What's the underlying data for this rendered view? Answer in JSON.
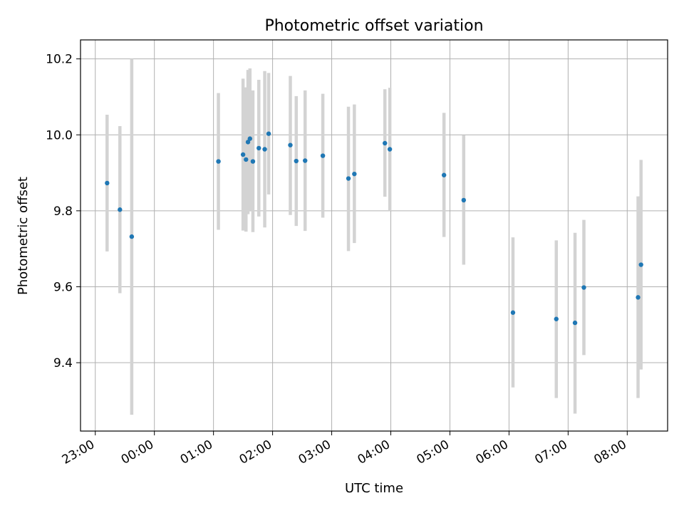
{
  "chart_data": {
    "type": "scatter",
    "title": "Photometric offset variation",
    "xlabel": "UTC time",
    "ylabel": "Photometric offset",
    "x_unit": "hours",
    "x_range": [
      "22:45",
      "08:41"
    ],
    "ylim": [
      9.22,
      10.25
    ],
    "grid": true,
    "x_ticks": [
      {
        "time": "23:00",
        "label": "23:00"
      },
      {
        "time": "00:00",
        "label": "00:00"
      },
      {
        "time": "01:00",
        "label": "01:00"
      },
      {
        "time": "02:00",
        "label": "02:00"
      },
      {
        "time": "03:00",
        "label": "03:00"
      },
      {
        "time": "04:00",
        "label": "04:00"
      },
      {
        "time": "05:00",
        "label": "05:00"
      },
      {
        "time": "06:00",
        "label": "06:00"
      },
      {
        "time": "07:00",
        "label": "07:00"
      },
      {
        "time": "08:00",
        "label": "08:00"
      }
    ],
    "y_ticks": [
      {
        "value": 9.4,
        "label": "9.4"
      },
      {
        "value": 9.6,
        "label": "9.6"
      },
      {
        "value": 9.8,
        "label": "9.8"
      },
      {
        "value": 10.0,
        "label": "10.0"
      },
      {
        "value": 10.2,
        "label": "10.2"
      }
    ],
    "point_color": "#1f77b4",
    "errorbar_color": "#d3d3d3",
    "points": [
      {
        "time": "23:12",
        "y": 9.873,
        "lo": 9.693,
        "hi": 10.053
      },
      {
        "time": "23:25",
        "y": 9.803,
        "lo": 9.583,
        "hi": 10.023
      },
      {
        "time": "23:37",
        "y": 9.732,
        "lo": 9.263,
        "hi": 10.2
      },
      {
        "time": "01:05",
        "y": 9.93,
        "lo": 9.75,
        "hi": 10.11
      },
      {
        "time": "01:30",
        "y": 9.948,
        "lo": 9.748,
        "hi": 10.148
      },
      {
        "time": "01:33",
        "y": 9.935,
        "lo": 9.745,
        "hi": 10.125
      },
      {
        "time": "01:35",
        "y": 9.981,
        "lo": 9.791,
        "hi": 10.171
      },
      {
        "time": "01:37",
        "y": 9.99,
        "lo": 9.8,
        "hi": 10.175
      },
      {
        "time": "01:40",
        "y": 9.93,
        "lo": 9.744,
        "hi": 10.117
      },
      {
        "time": "01:46",
        "y": 9.965,
        "lo": 9.785,
        "hi": 10.145
      },
      {
        "time": "01:52",
        "y": 9.962,
        "lo": 9.756,
        "hi": 10.168
      },
      {
        "time": "01:56",
        "y": 10.003,
        "lo": 9.843,
        "hi": 10.163
      },
      {
        "time": "02:18",
        "y": 9.973,
        "lo": 9.789,
        "hi": 10.155
      },
      {
        "time": "02:24",
        "y": 9.931,
        "lo": 9.76,
        "hi": 10.102
      },
      {
        "time": "02:33",
        "y": 9.932,
        "lo": 9.747,
        "hi": 10.117
      },
      {
        "time": "02:51",
        "y": 9.945,
        "lo": 9.782,
        "hi": 10.108
      },
      {
        "time": "03:17",
        "y": 9.885,
        "lo": 9.694,
        "hi": 10.074
      },
      {
        "time": "03:23",
        "y": 9.897,
        "lo": 9.715,
        "hi": 10.08
      },
      {
        "time": "03:54",
        "y": 9.978,
        "lo": 9.837,
        "hi": 10.12
      },
      {
        "time": "03:59",
        "y": 9.962,
        "lo": 9.8,
        "hi": 10.124
      },
      {
        "time": "04:54",
        "y": 9.894,
        "lo": 9.731,
        "hi": 10.058
      },
      {
        "time": "05:14",
        "y": 9.828,
        "lo": 9.658,
        "hi": 9.999
      },
      {
        "time": "06:04",
        "y": 9.532,
        "lo": 9.335,
        "hi": 9.73
      },
      {
        "time": "06:48",
        "y": 9.515,
        "lo": 9.307,
        "hi": 9.722
      },
      {
        "time": "07:07",
        "y": 9.505,
        "lo": 9.266,
        "hi": 9.742
      },
      {
        "time": "07:16",
        "y": 9.598,
        "lo": 9.42,
        "hi": 9.776
      },
      {
        "time": "08:11",
        "y": 9.572,
        "lo": 9.307,
        "hi": 9.838
      },
      {
        "time": "08:14",
        "y": 9.658,
        "lo": 9.382,
        "hi": 9.934
      }
    ]
  }
}
